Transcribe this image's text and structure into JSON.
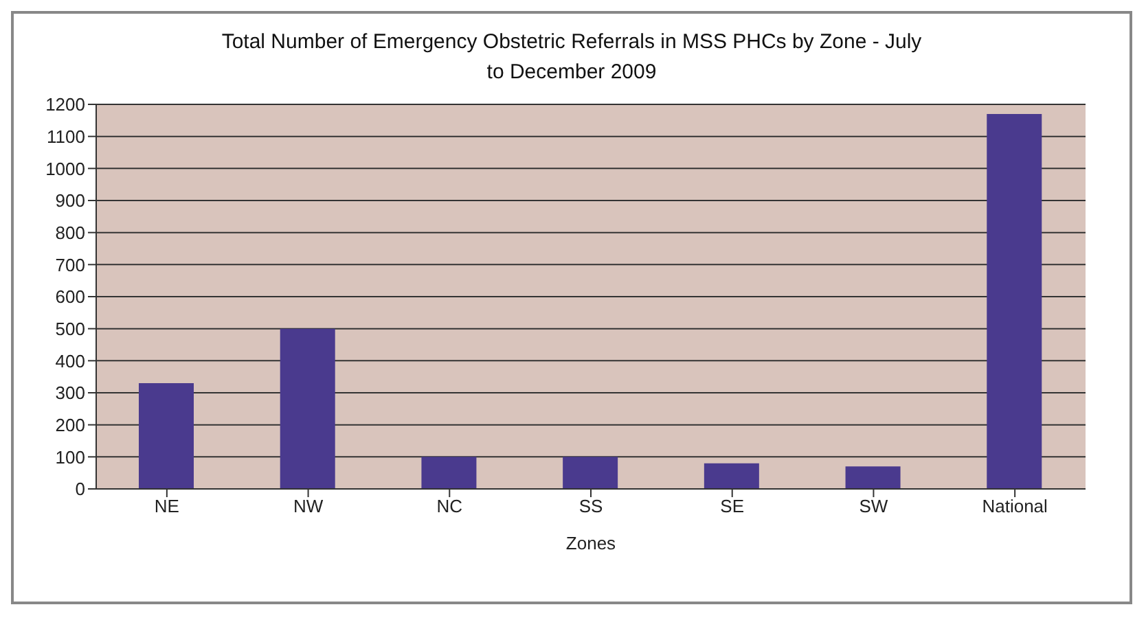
{
  "chart_data": {
    "type": "bar",
    "title": "Total Number of Emergency Obstetric Referrals in MSS PHCs by Zone - July to December 2009",
    "xlabel": "Zones",
    "categories": [
      "NE",
      "NW",
      "NC",
      "SS",
      "SE",
      "SW",
      "National"
    ],
    "values": [
      330,
      500,
      100,
      100,
      80,
      70,
      1170
    ],
    "color": "#4a3a8e",
    "ylim": [
      0,
      1200
    ],
    "yticks": [
      0,
      100,
      200,
      300,
      400,
      500,
      600,
      700,
      800,
      900,
      1000,
      1100,
      1200
    ],
    "grid": "y"
  }
}
